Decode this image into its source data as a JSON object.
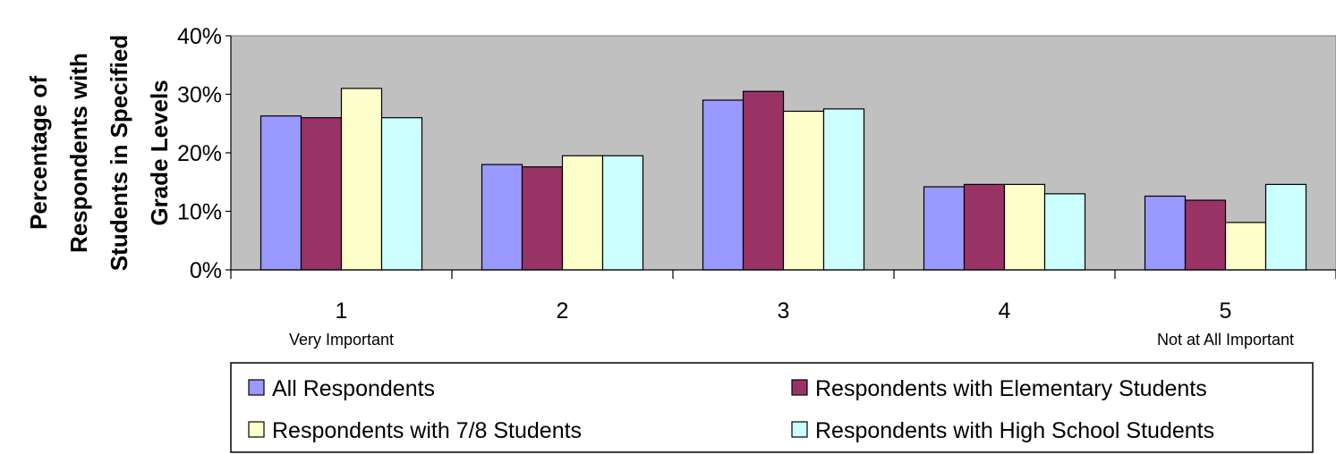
{
  "chart_data": {
    "type": "bar",
    "title": "",
    "xlabel": "",
    "ylabel_lines": [
      "Percentage of",
      "Respondents with",
      "Students in Specified",
      "Grade Levels"
    ],
    "categories": [
      "1",
      "2",
      "3",
      "4",
      "5"
    ],
    "category_sublabels": [
      "Very Important",
      "",
      "",
      "",
      "Not at All Important"
    ],
    "y_ticks": [
      "0%",
      "10%",
      "20%",
      "30%",
      "40%"
    ],
    "ylim": [
      0,
      40
    ],
    "grid": false,
    "legend_position": "bottom",
    "series": [
      {
        "name": "All Respondents",
        "color": "#9999ff",
        "values": [
          26.3,
          18.0,
          29.0,
          14.2,
          12.6
        ]
      },
      {
        "name": "Respondents with Elementary Students",
        "color": "#993366",
        "values": [
          26.0,
          17.6,
          30.5,
          14.6,
          11.9
        ]
      },
      {
        "name": "Respondents with 7/8 Students",
        "color": "#ffffcc",
        "values": [
          31.0,
          19.5,
          27.1,
          14.6,
          8.1
        ]
      },
      {
        "name": "Respondents with High School Students",
        "color": "#ccffff",
        "values": [
          26.0,
          19.5,
          27.5,
          13.0,
          14.6
        ]
      }
    ],
    "plot_background": "#c0c0c0"
  }
}
